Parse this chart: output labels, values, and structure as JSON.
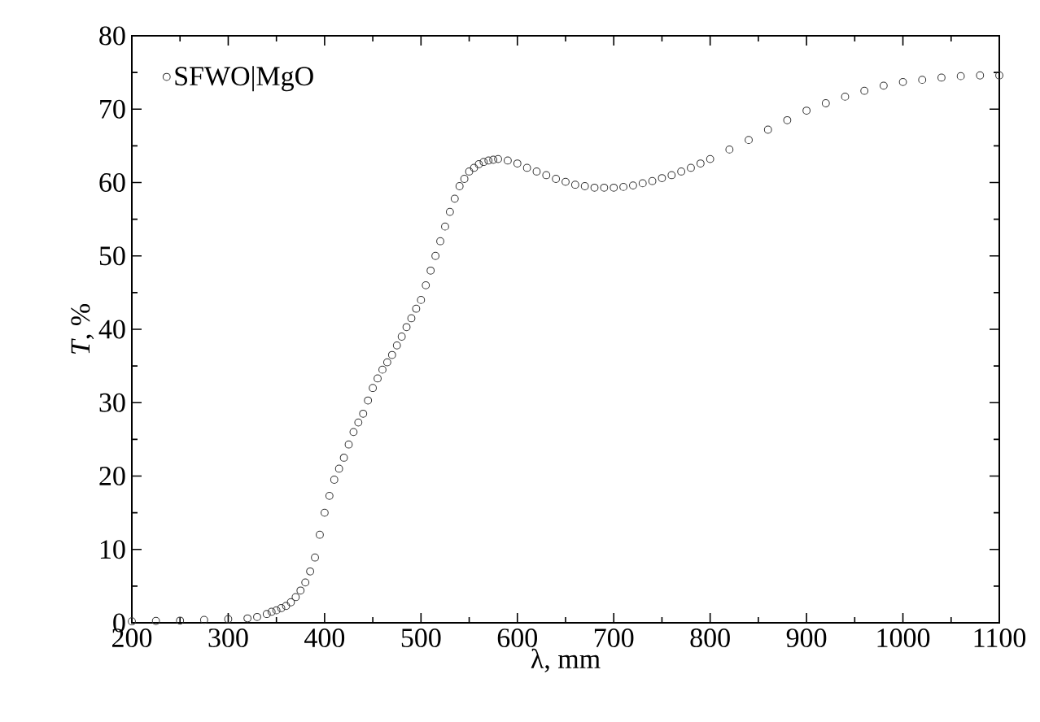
{
  "chart_data": {
    "type": "scatter",
    "xlabel": "λ, mm",
    "ylabel": "*T*, %",
    "xlim": [
      200,
      1100
    ],
    "ylim": [
      0,
      80
    ],
    "xticks": [
      200,
      300,
      400,
      500,
      600,
      700,
      800,
      900,
      1000,
      1100
    ],
    "yticks": [
      0,
      10,
      20,
      30,
      40,
      50,
      60,
      70,
      80
    ],
    "legend": "top left",
    "marker": "circle",
    "grid": false,
    "series": [
      {
        "name": "SFWO|MgO",
        "color": "#333333",
        "x": [
          200,
          225,
          250,
          275,
          300,
          320,
          330,
          340,
          345,
          350,
          355,
          360,
          365,
          370,
          375,
          380,
          385,
          390,
          395,
          400,
          405,
          410,
          415,
          420,
          425,
          430,
          435,
          440,
          445,
          450,
          455,
          460,
          465,
          470,
          475,
          480,
          485,
          490,
          495,
          500,
          505,
          510,
          515,
          520,
          525,
          530,
          535,
          540,
          545,
          550,
          555,
          560,
          565,
          570,
          575,
          580,
          590,
          600,
          610,
          620,
          630,
          640,
          650,
          660,
          670,
          680,
          690,
          700,
          710,
          720,
          730,
          740,
          750,
          760,
          770,
          780,
          790,
          800,
          820,
          840,
          860,
          880,
          900,
          920,
          940,
          960,
          980,
          1000,
          1020,
          1040,
          1060,
          1080,
          1100
        ],
        "values": [
          0.2,
          0.25,
          0.3,
          0.4,
          0.5,
          0.6,
          0.8,
          1.2,
          1.5,
          1.7,
          2,
          2.3,
          2.8,
          3.5,
          4.4,
          5.5,
          7,
          8.9,
          12,
          15,
          17.3,
          19.5,
          21,
          22.5,
          24.3,
          26,
          27.3,
          28.5,
          30.3,
          32,
          33.3,
          34.5,
          35.5,
          36.5,
          37.8,
          39,
          40.3,
          41.5,
          42.8,
          44,
          46,
          48,
          50,
          52,
          54,
          56,
          57.8,
          59.5,
          60.5,
          61.5,
          62,
          62.5,
          62.8,
          63,
          63.1,
          63.2,
          63,
          62.6,
          62,
          61.5,
          61,
          60.5,
          60.1,
          59.7,
          59.5,
          59.3,
          59.3,
          59.3,
          59.4,
          59.6,
          59.9,
          60.2,
          60.6,
          61,
          61.5,
          62,
          62.6,
          63.2,
          64.5,
          65.8,
          67.2,
          68.5,
          69.8,
          70.8,
          71.7,
          72.5,
          73.2,
          73.7,
          74,
          74.3,
          74.5,
          74.6,
          74.6
        ]
      }
    ]
  }
}
